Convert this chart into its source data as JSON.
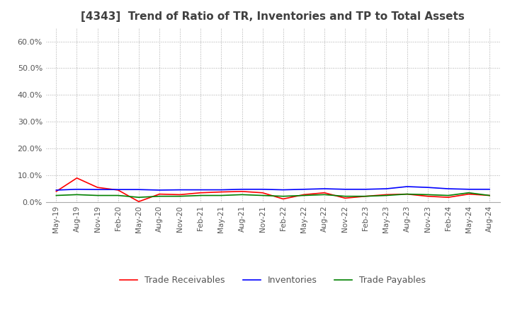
{
  "title": "[4343]  Trend of Ratio of TR, Inventories and TP to Total Assets",
  "ylim": [
    0,
    0.65
  ],
  "yticks": [
    0.0,
    0.1,
    0.2,
    0.3,
    0.4,
    0.5,
    0.6
  ],
  "x_labels": [
    "May-19",
    "Aug-19",
    "Nov-19",
    "Feb-20",
    "May-20",
    "Aug-20",
    "Nov-20",
    "Feb-21",
    "May-21",
    "Aug-21",
    "Nov-21",
    "Feb-22",
    "May-22",
    "Aug-22",
    "Nov-22",
    "Feb-23",
    "May-23",
    "Aug-23",
    "Nov-23",
    "Feb-24",
    "May-24",
    "Aug-24"
  ],
  "trade_receivables": [
    0.04,
    0.09,
    0.055,
    0.045,
    0.002,
    0.03,
    0.028,
    0.035,
    0.038,
    0.04,
    0.035,
    0.012,
    0.028,
    0.035,
    0.015,
    0.022,
    0.028,
    0.03,
    0.022,
    0.018,
    0.03,
    0.025
  ],
  "inventories": [
    0.045,
    0.048,
    0.047,
    0.047,
    0.047,
    0.045,
    0.046,
    0.046,
    0.046,
    0.048,
    0.048,
    0.046,
    0.048,
    0.05,
    0.048,
    0.048,
    0.05,
    0.058,
    0.055,
    0.05,
    0.048,
    0.048
  ],
  "trade_payables": [
    0.025,
    0.028,
    0.025,
    0.025,
    0.018,
    0.022,
    0.022,
    0.025,
    0.025,
    0.028,
    0.025,
    0.022,
    0.025,
    0.028,
    0.022,
    0.022,
    0.025,
    0.03,
    0.028,
    0.025,
    0.035,
    0.025
  ],
  "tr_color": "#FF0000",
  "inv_color": "#0000FF",
  "tp_color": "#008000",
  "background_color": "#FFFFFF",
  "grid_color": "#AAAAAA",
  "title_color": "#404040"
}
